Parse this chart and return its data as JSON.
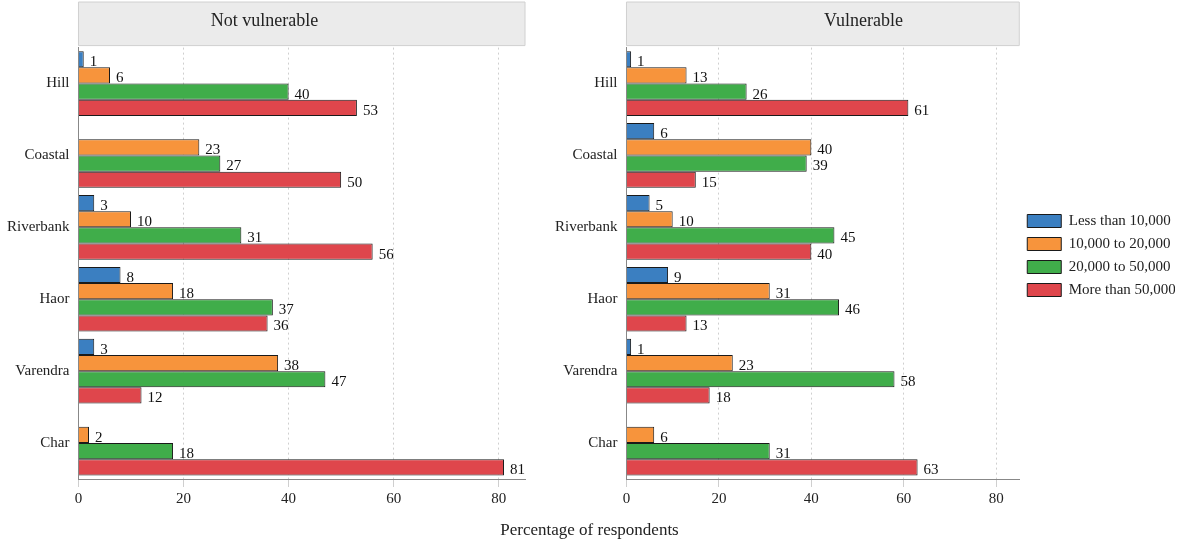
{
  "chart_data": [
    {
      "type": "bar",
      "orientation": "horizontal",
      "title": "Not vulnerable",
      "xlabel": "Percentage of respondents",
      "categories": [
        "Hill",
        "Coastal",
        "Riverbank",
        "Haor",
        "Varendra",
        "Char"
      ],
      "xlim": [
        0,
        85
      ],
      "xticks": [
        0,
        20,
        40,
        60,
        80
      ],
      "grid": "x",
      "legend": false,
      "data_labels": true,
      "series": [
        {
          "color": "#3b7fc1",
          "values": [
            1,
            null,
            3,
            8,
            3,
            null
          ]
        },
        {
          "color": "#f7943c",
          "values": [
            6,
            23,
            10,
            18,
            38,
            2
          ]
        },
        {
          "color": "#40ad4a",
          "values": [
            40,
            27,
            31,
            37,
            47,
            18
          ]
        },
        {
          "color": "#df464c",
          "values": [
            53,
            50,
            56,
            36,
            12,
            81
          ]
        }
      ]
    },
    {
      "type": "bar",
      "orientation": "horizontal",
      "title": "Vulnerable",
      "categories": [
        "Hill",
        "Coastal",
        "Riverbank",
        "Haor",
        "Varendra",
        "Char"
      ],
      "xlim": [
        0,
        85
      ],
      "xticks": [
        0,
        20,
        40,
        60,
        80
      ],
      "grid": "x",
      "legend": "right",
      "data_labels": true,
      "series": [
        {
          "name": "Less than 10,000",
          "color": "#3b7fc1",
          "values": [
            1,
            6,
            5,
            9,
            1,
            null
          ]
        },
        {
          "name": "10,000 to 20,000",
          "color": "#f7943c",
          "values": [
            13,
            40,
            10,
            31,
            23,
            6
          ]
        },
        {
          "name": "20,000 to 50,000",
          "color": "#40ad4a",
          "values": [
            26,
            39,
            45,
            46,
            58,
            31
          ]
        },
        {
          "name": "More than 50,000",
          "color": "#df464c",
          "values": [
            61,
            15,
            40,
            13,
            18,
            63
          ]
        }
      ]
    }
  ]
}
